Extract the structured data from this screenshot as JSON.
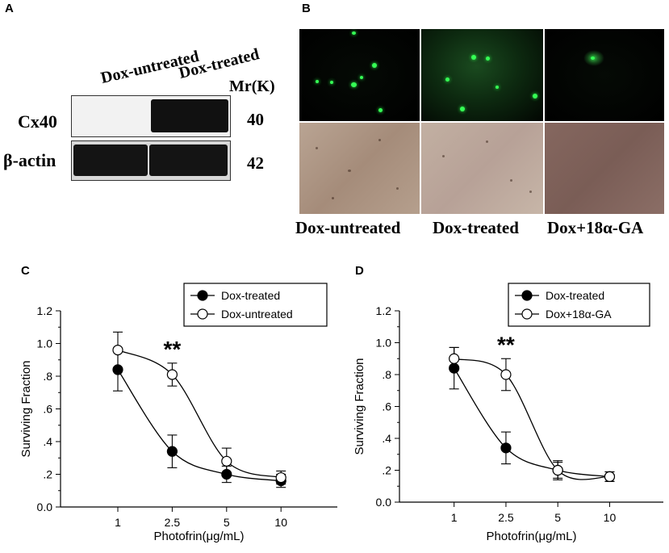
{
  "panels": {
    "a": {
      "letter": "A",
      "lanes": [
        "Dox-untreated",
        "Dox-treated"
      ],
      "mr_label": "Mr(K)",
      "bands": [
        {
          "name": "Cx40",
          "mr": "40"
        },
        {
          "name": "β-actin",
          "mr": "42"
        }
      ]
    },
    "b": {
      "letter": "B",
      "labels": [
        "Dox-untreated",
        "Dox-treated",
        "Dox+18α-GA"
      ]
    },
    "c": {
      "letter": "C"
    },
    "d": {
      "letter": "D"
    }
  },
  "colors": {
    "fluorescence": "#35ff55",
    "series_filled": "#000000",
    "series_open": "#ffffff"
  },
  "chart_data": [
    {
      "type": "scatter",
      "panel": "C",
      "xlabel": "Photofrin(μg/mL)",
      "ylabel": "Surviving Fraction",
      "x_ticks": [
        "1",
        "2.5",
        "5",
        "10"
      ],
      "y_ticks": [
        "0.0",
        ".2",
        ".4",
        ".6",
        ".8",
        "1.0",
        "1.2"
      ],
      "ylim": [
        0,
        1.2
      ],
      "legend": "top-right",
      "annotation": "**",
      "series": [
        {
          "name": "Dox-treated",
          "marker": "filled-circle",
          "x": [
            1,
            2.5,
            5,
            10
          ],
          "y": [
            0.84,
            0.34,
            0.2,
            0.16
          ],
          "err": [
            0.13,
            0.1,
            0.05,
            0.04
          ]
        },
        {
          "name": "Dox-untreated",
          "marker": "open-circle",
          "x": [
            1,
            2.5,
            5,
            10
          ],
          "y": [
            0.96,
            0.81,
            0.28,
            0.18
          ],
          "err": [
            0.11,
            0.07,
            0.08,
            0.04
          ]
        }
      ]
    },
    {
      "type": "scatter",
      "panel": "D",
      "xlabel": "Photofrin(μg/mL)",
      "ylabel": "Surviving Fraction",
      "x_ticks": [
        "1",
        "2.5",
        "5",
        "10"
      ],
      "y_ticks": [
        "0.0",
        ".2",
        ".4",
        ".6",
        ".8",
        "1.0",
        "1.2"
      ],
      "ylim": [
        0,
        1.2
      ],
      "legend": "top-right",
      "annotation": "**",
      "series": [
        {
          "name": "Dox-treated",
          "marker": "filled-circle",
          "x": [
            1,
            2.5,
            5,
            10
          ],
          "y": [
            0.84,
            0.34,
            0.2,
            0.16
          ],
          "err": [
            0.13,
            0.1,
            0.05,
            0.03
          ]
        },
        {
          "name": "Dox+18α-GA",
          "marker": "open-circle",
          "x": [
            1,
            2.5,
            5,
            10
          ],
          "y": [
            0.9,
            0.8,
            0.2,
            0.16
          ],
          "err": [
            0.07,
            0.1,
            0.06,
            0.03
          ]
        }
      ]
    }
  ]
}
